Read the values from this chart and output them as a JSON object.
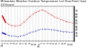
{
  "title": "Milwaukee Weather Outdoor Temperature (vs) Dew Point (Last 24 Hours)",
  "temp": [
    62,
    52,
    49,
    47,
    46,
    46,
    48,
    52,
    56,
    61,
    65,
    68,
    70,
    72,
    70,
    67,
    64,
    61,
    59,
    57,
    55,
    53,
    52,
    51
  ],
  "dew": [
    35,
    33,
    31,
    30,
    30,
    29,
    30,
    31,
    33,
    35,
    37,
    38,
    40,
    41,
    41,
    41,
    40,
    40,
    39,
    38,
    37,
    37,
    36,
    36
  ],
  "temp_color": "#cc0000",
  "dew_color": "#0000bb",
  "bg_color": "#ffffff",
  "plot_bg": "#ffffff",
  "grid_color": "#999999",
  "ylim": [
    22,
    78
  ],
  "yticks": [
    30,
    35,
    40,
    45,
    50,
    55,
    60,
    65,
    70
  ],
  "title_fontsize": 2.8,
  "tick_fontsize": 2.5,
  "line_width": 0.7,
  "marker_size": 1.0,
  "x_labels": [
    "12a",
    "1",
    "2",
    "3",
    "4",
    "5",
    "6",
    "7",
    "8",
    "9",
    "10",
    "11",
    "12p",
    "1",
    "2",
    "3",
    "4",
    "5",
    "6",
    "7",
    "8",
    "9",
    "10",
    "11"
  ]
}
